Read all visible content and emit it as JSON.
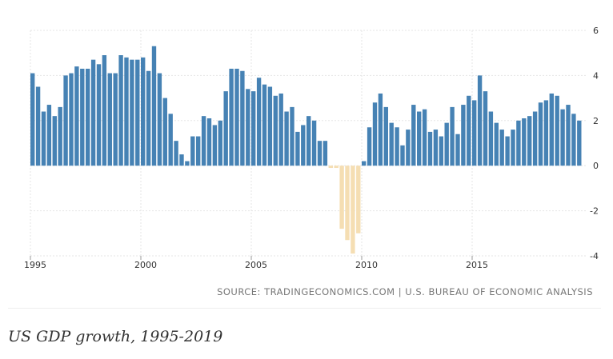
{
  "chart_data": {
    "type": "bar",
    "title": "",
    "xlabel": "",
    "ylabel": "",
    "x_start": "1995 Q1",
    "frequency": "quarterly",
    "values": [
      4.1,
      3.5,
      2.4,
      2.7,
      2.2,
      2.6,
      4.0,
      4.1,
      4.4,
      4.3,
      4.3,
      4.7,
      4.5,
      4.9,
      4.1,
      4.1,
      4.9,
      4.8,
      4.7,
      4.7,
      4.8,
      4.2,
      5.3,
      4.1,
      3.0,
      2.3,
      1.1,
      0.5,
      0.2,
      1.3,
      1.3,
      2.2,
      2.1,
      1.8,
      2.0,
      3.3,
      4.3,
      4.3,
      4.2,
      3.4,
      3.3,
      3.9,
      3.6,
      3.5,
      3.1,
      3.2,
      2.4,
      2.6,
      1.5,
      1.8,
      2.2,
      2.0,
      1.1,
      1.1,
      -0.1,
      -0.1,
      -2.8,
      -3.3,
      -3.9,
      -3.0,
      0.2,
      1.7,
      2.8,
      3.2,
      2.6,
      1.9,
      1.7,
      0.9,
      1.6,
      2.7,
      2.4,
      2.5,
      1.5,
      1.6,
      1.3,
      1.9,
      2.6,
      1.4,
      2.7,
      3.1,
      2.9,
      4.0,
      3.3,
      2.4,
      1.9,
      1.6,
      1.3,
      1.6,
      2.0,
      2.1,
      2.2,
      2.4,
      2.8,
      2.9,
      3.2,
      3.1,
      2.5,
      2.7,
      2.3,
      2.0
    ],
    "x_tick_labels": [
      "1995",
      "2000",
      "2005",
      "2010",
      "2015"
    ],
    "y_tick_labels": [
      "6",
      "4",
      "2",
      "0",
      "-2",
      "-4"
    ],
    "ylim": [
      -4,
      6
    ],
    "grid": true,
    "colors": {
      "positive": "#4682b4",
      "negative": "#f5deb3"
    }
  },
  "source_text": "SOURCE: TRADINGECONOMICS.COM | U.S. BUREAU OF ECONOMIC ANALYSIS",
  "caption": "US GDP growth, 1995-2019"
}
